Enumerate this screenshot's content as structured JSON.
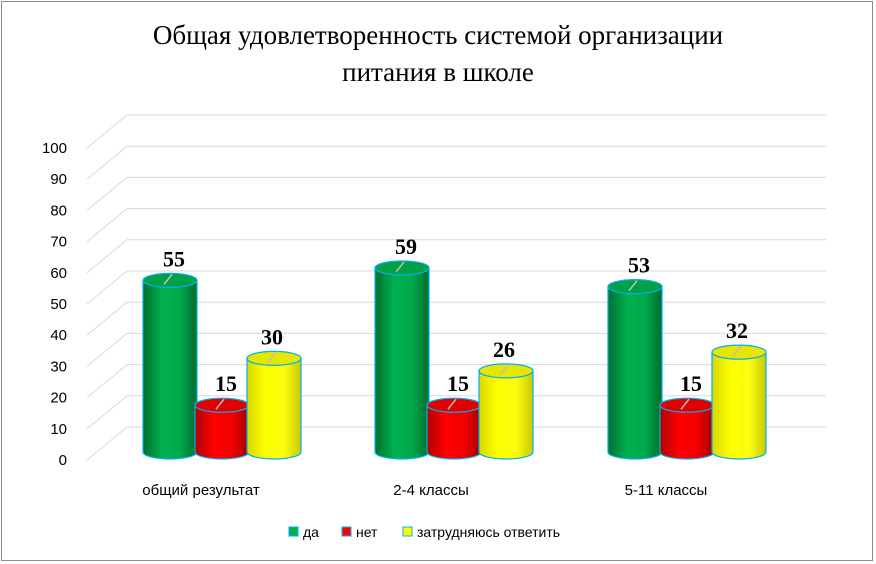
{
  "chart_data": {
    "type": "bar",
    "title_lines": [
      "Общая удовлетворенность системой организации",
      "питания в школе"
    ],
    "categories": [
      "общий результат",
      "2-4 классы",
      "5-11 классы"
    ],
    "series": [
      {
        "name": "да",
        "values": [
          55,
          59,
          53
        ],
        "color": "#00b050"
      },
      {
        "name": "нет",
        "values": [
          15,
          15,
          15
        ],
        "color": "#ff0000"
      },
      {
        "name": "затрудняюсь ответить",
        "values": [
          30,
          26,
          32
        ],
        "color": "#ffff00"
      }
    ],
    "ylim": [
      0,
      100
    ],
    "yticks": [
      "0",
      "10",
      "20",
      "30",
      "40",
      "50",
      "60",
      "70",
      "80",
      "90",
      "100"
    ],
    "grid": true,
    "legend_position": "bottom",
    "bar_shape": "cylinder",
    "border_color": "#00b0f0"
  }
}
